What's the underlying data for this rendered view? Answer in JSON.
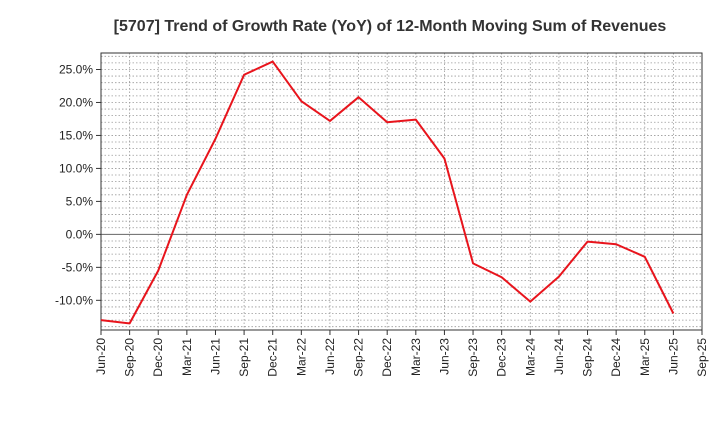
{
  "chart_data": {
    "type": "line",
    "title": "[5707]  Trend of Growth Rate (YoY) of 12-Month Moving Sum of Revenues",
    "xlabel": "",
    "ylabel": "",
    "x_tick_labels": [
      "Jun-20",
      "Sep-20",
      "Dec-20",
      "Mar-21",
      "Jun-21",
      "Sep-21",
      "Dec-21",
      "Mar-22",
      "Jun-22",
      "Sep-22",
      "Dec-22",
      "Mar-23",
      "Jun-23",
      "Sep-23",
      "Dec-23",
      "Mar-24",
      "Jun-24",
      "Sep-24",
      "Dec-24",
      "Mar-25",
      "Jun-25",
      "Sep-25"
    ],
    "y_tick_values": [
      -10,
      -5,
      0,
      5,
      10,
      15,
      20,
      25
    ],
    "y_tick_labels": [
      "-10.0%",
      "-5.0%",
      "0.0%",
      "5.0%",
      "10.0%",
      "15.0%",
      "20.0%",
      "25.0%"
    ],
    "ylim": [
      -14.5,
      27.5
    ],
    "grid": true,
    "legend": "none",
    "series": [
      {
        "color": "#e8141c",
        "x": [
          "Jun-20",
          "Sep-20",
          "Dec-20",
          "Mar-21",
          "Jun-21",
          "Sep-21",
          "Dec-21",
          "Mar-22",
          "Jun-22",
          "Sep-22",
          "Dec-22",
          "Mar-23",
          "Jun-23",
          "Sep-23",
          "Dec-23",
          "Mar-24",
          "Jun-24",
          "Sep-24",
          "Dec-24",
          "Mar-25",
          "Jun-25"
        ],
        "values": [
          -13.0,
          -13.5,
          -5.5,
          6.0,
          14.5,
          24.2,
          26.2,
          20.2,
          17.2,
          20.8,
          17.0,
          17.4,
          11.5,
          -4.4,
          -6.5,
          -10.2,
          -6.4,
          -1.1,
          -1.5,
          -3.4,
          -12.0
        ]
      }
    ]
  }
}
